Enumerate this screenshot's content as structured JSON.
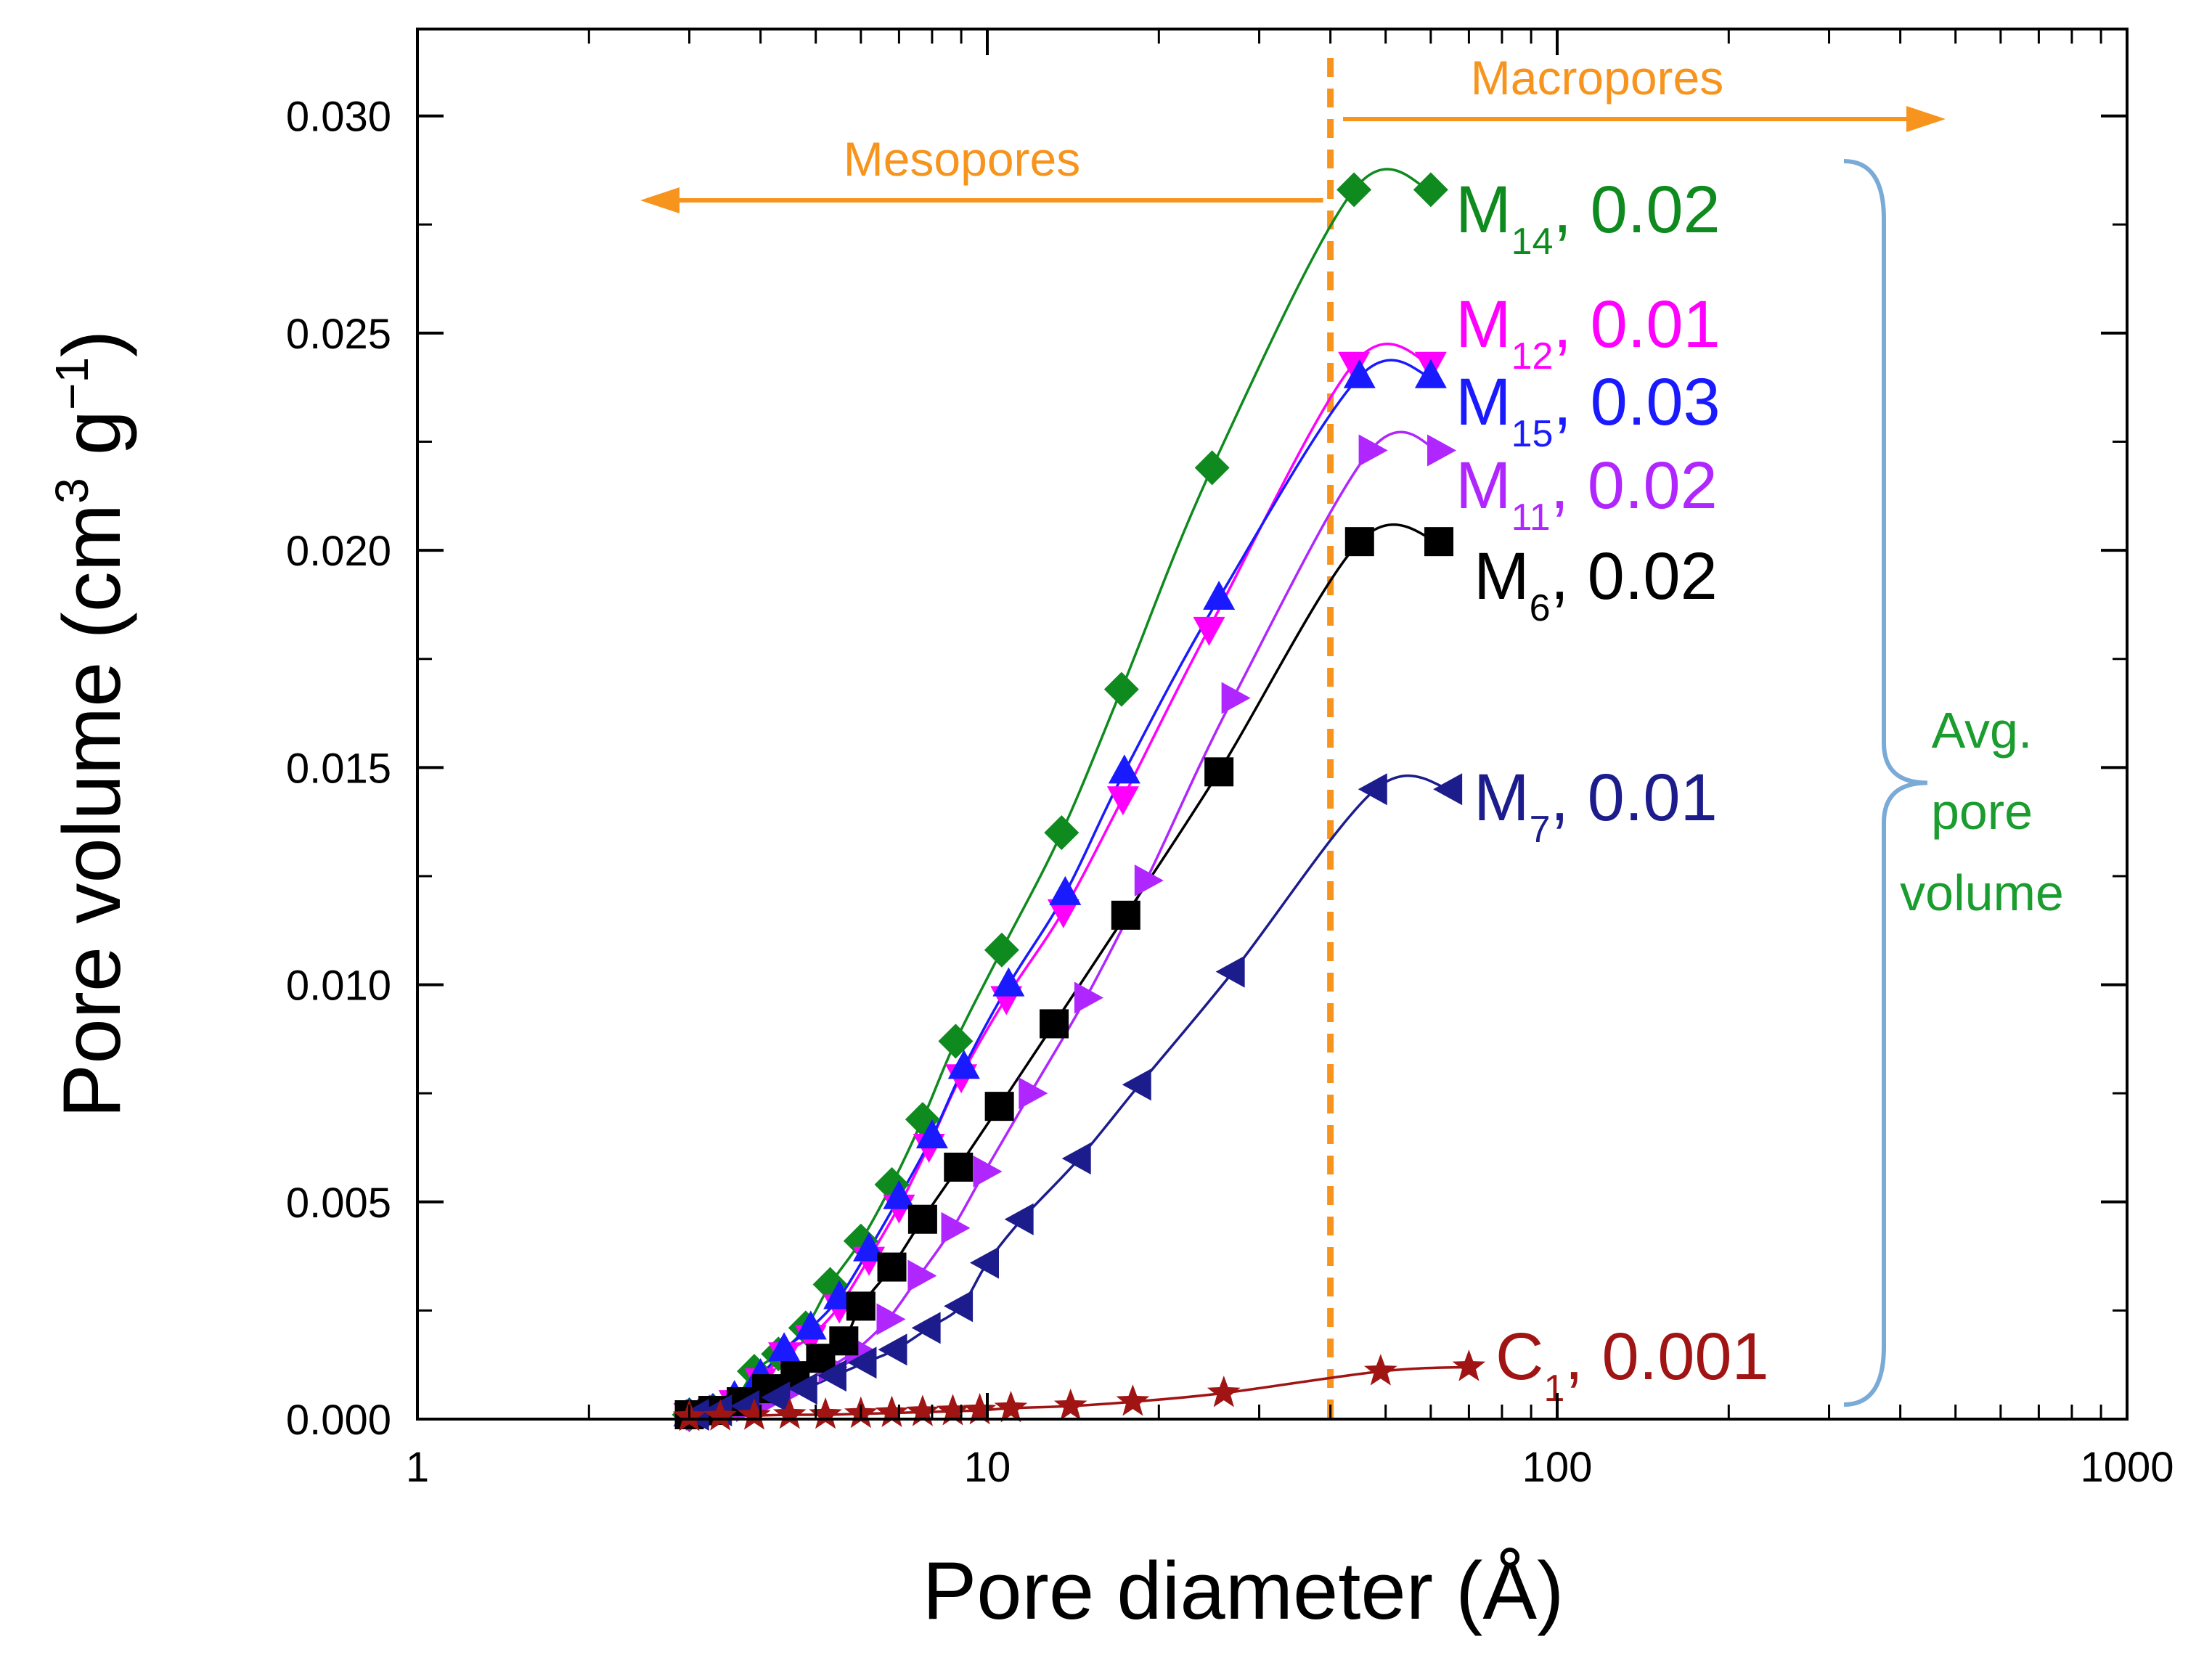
{
  "chart_data": {
    "type": "scatter",
    "title": "",
    "xlabel": "Pore diameter (Å)",
    "ylabel_parts": [
      "Pore volume (cm",
      "3",
      " g",
      "−1",
      ")"
    ],
    "x_scale": "log",
    "xlim": [
      1,
      1000
    ],
    "ylim": [
      0,
      0.032
    ],
    "x_ticks": [
      1,
      10,
      100,
      1000
    ],
    "x_tick_labels": [
      "1",
      "10",
      "100",
      "1000"
    ],
    "y_ticks": [
      0,
      0.005,
      0.01,
      0.015,
      0.02,
      0.025,
      0.03
    ],
    "y_tick_labels": [
      "0.000",
      "0.005",
      "0.010",
      "0.015",
      "0.020",
      "0.025",
      "0.030"
    ],
    "divider_x": 40,
    "annotations": {
      "mesopores": "Mesopores",
      "macropores": "Macropores",
      "bracket_label": [
        "Avg.",
        "pore",
        "volume"
      ]
    },
    "series": [
      {
        "name": "M14",
        "label_main": "M",
        "label_sub": "14",
        "label_value": ", 0.02",
        "color": "#0f8a1f",
        "marker": "diamond",
        "x": [
          3.0,
          3.3,
          3.6,
          3.9,
          4.3,
          4.8,
          5.3,
          6.0,
          6.8,
          7.7,
          8.8,
          10.6,
          13.5,
          17.2,
          24.8,
          44,
          60
        ],
        "y": [
          0.0001,
          0.0002,
          0.0004,
          0.0011,
          0.0015,
          0.0021,
          0.0031,
          0.0041,
          0.0054,
          0.0069,
          0.0087,
          0.0108,
          0.0135,
          0.0168,
          0.0219,
          0.0283,
          0.0283
        ]
      },
      {
        "name": "M12",
        "label_main": "M",
        "label_sub": "12",
        "label_value": ", 0.01",
        "color": "#ff00ff",
        "marker": "triangle-down",
        "x": [
          3.0,
          3.3,
          3.6,
          4.0,
          4.4,
          4.9,
          5.5,
          6.2,
          7.0,
          7.9,
          9.0,
          10.8,
          13.6,
          17.3,
          24.5,
          44,
          60
        ],
        "y": [
          0.0001,
          0.0002,
          0.0004,
          0.0009,
          0.0015,
          0.0019,
          0.0026,
          0.0037,
          0.0049,
          0.0063,
          0.0079,
          0.0097,
          0.0117,
          0.0143,
          0.0182,
          0.0243,
          0.0243
        ]
      },
      {
        "name": "M15",
        "label_main": "M",
        "label_sub": "15",
        "label_value": ", 0.03",
        "color": "#1a1aff",
        "marker": "triangle-up",
        "x": [
          3.0,
          3.3,
          3.6,
          4.0,
          4.4,
          4.9,
          5.5,
          6.2,
          7.0,
          8.0,
          9.1,
          10.9,
          13.7,
          17.4,
          25.5,
          45,
          60
        ],
        "y": [
          0.0001,
          0.0002,
          0.0005,
          0.001,
          0.0016,
          0.0021,
          0.0028,
          0.0039,
          0.0051,
          0.0065,
          0.0081,
          0.01,
          0.0121,
          0.0149,
          0.0189,
          0.024,
          0.024
        ]
      },
      {
        "name": "M11",
        "label_main": "M",
        "label_sub": "11",
        "label_value": ", 0.02",
        "color": "#b026ff",
        "marker": "triangle-right",
        "x": [
          3.1,
          3.4,
          3.8,
          4.2,
          4.7,
          5.3,
          5.9,
          6.7,
          7.6,
          8.7,
          9.9,
          11.9,
          14.9,
          19.0,
          27.0,
          47,
          62
        ],
        "y": [
          0.0001,
          0.0002,
          0.0003,
          0.0005,
          0.0008,
          0.0012,
          0.0016,
          0.0023,
          0.0033,
          0.0044,
          0.0057,
          0.0075,
          0.0097,
          0.0124,
          0.0166,
          0.0223,
          0.0223
        ]
      },
      {
        "name": "M6",
        "label_main": "M",
        "label_sub": "6",
        "label_value": ", 0.02",
        "color": "#000000",
        "marker": "square",
        "x": [
          3.0,
          3.3,
          3.7,
          4.1,
          4.6,
          5.1,
          5.6,
          6.0,
          6.8,
          7.7,
          8.9,
          10.5,
          13.1,
          17.5,
          25.5,
          45,
          62
        ],
        "y": [
          0.0001,
          0.0002,
          0.0004,
          0.0007,
          0.001,
          0.0014,
          0.0018,
          0.0026,
          0.0035,
          0.0046,
          0.0058,
          0.0072,
          0.0091,
          0.0116,
          0.0149,
          0.0202,
          0.0202
        ]
      },
      {
        "name": "M7",
        "label_main": "M",
        "label_sub": "7",
        "label_value": ", 0.01",
        "color": "#1c1c8c",
        "marker": "triangle-left",
        "x": [
          3.1,
          3.4,
          3.8,
          4.3,
          4.8,
          5.4,
          6.1,
          6.9,
          7.9,
          9.0,
          10.0,
          11.5,
          14.5,
          18.5,
          27.0,
          48,
          65
        ],
        "y": [
          0.0001,
          0.0002,
          0.0003,
          0.0005,
          0.0007,
          0.001,
          0.0013,
          0.0016,
          0.0021,
          0.0026,
          0.0036,
          0.0046,
          0.006,
          0.0077,
          0.0103,
          0.0145,
          0.0145
        ]
      },
      {
        "name": "C1",
        "label_main": "C",
        "label_sub": "1",
        "label_value": ", 0.001",
        "color": "#a01414",
        "marker": "star",
        "x": [
          3.0,
          3.4,
          3.9,
          4.5,
          5.2,
          6.0,
          6.8,
          7.7,
          8.7,
          9.7,
          11.0,
          14.0,
          18.0,
          26.0,
          49,
          70
        ],
        "y": [
          5e-05,
          6e-05,
          8e-05,
          0.0001,
          0.0001,
          0.00012,
          0.00014,
          0.00016,
          0.00018,
          0.0002,
          0.00025,
          0.0003,
          0.0004,
          0.0006,
          0.0011,
          0.0012
        ]
      }
    ]
  }
}
